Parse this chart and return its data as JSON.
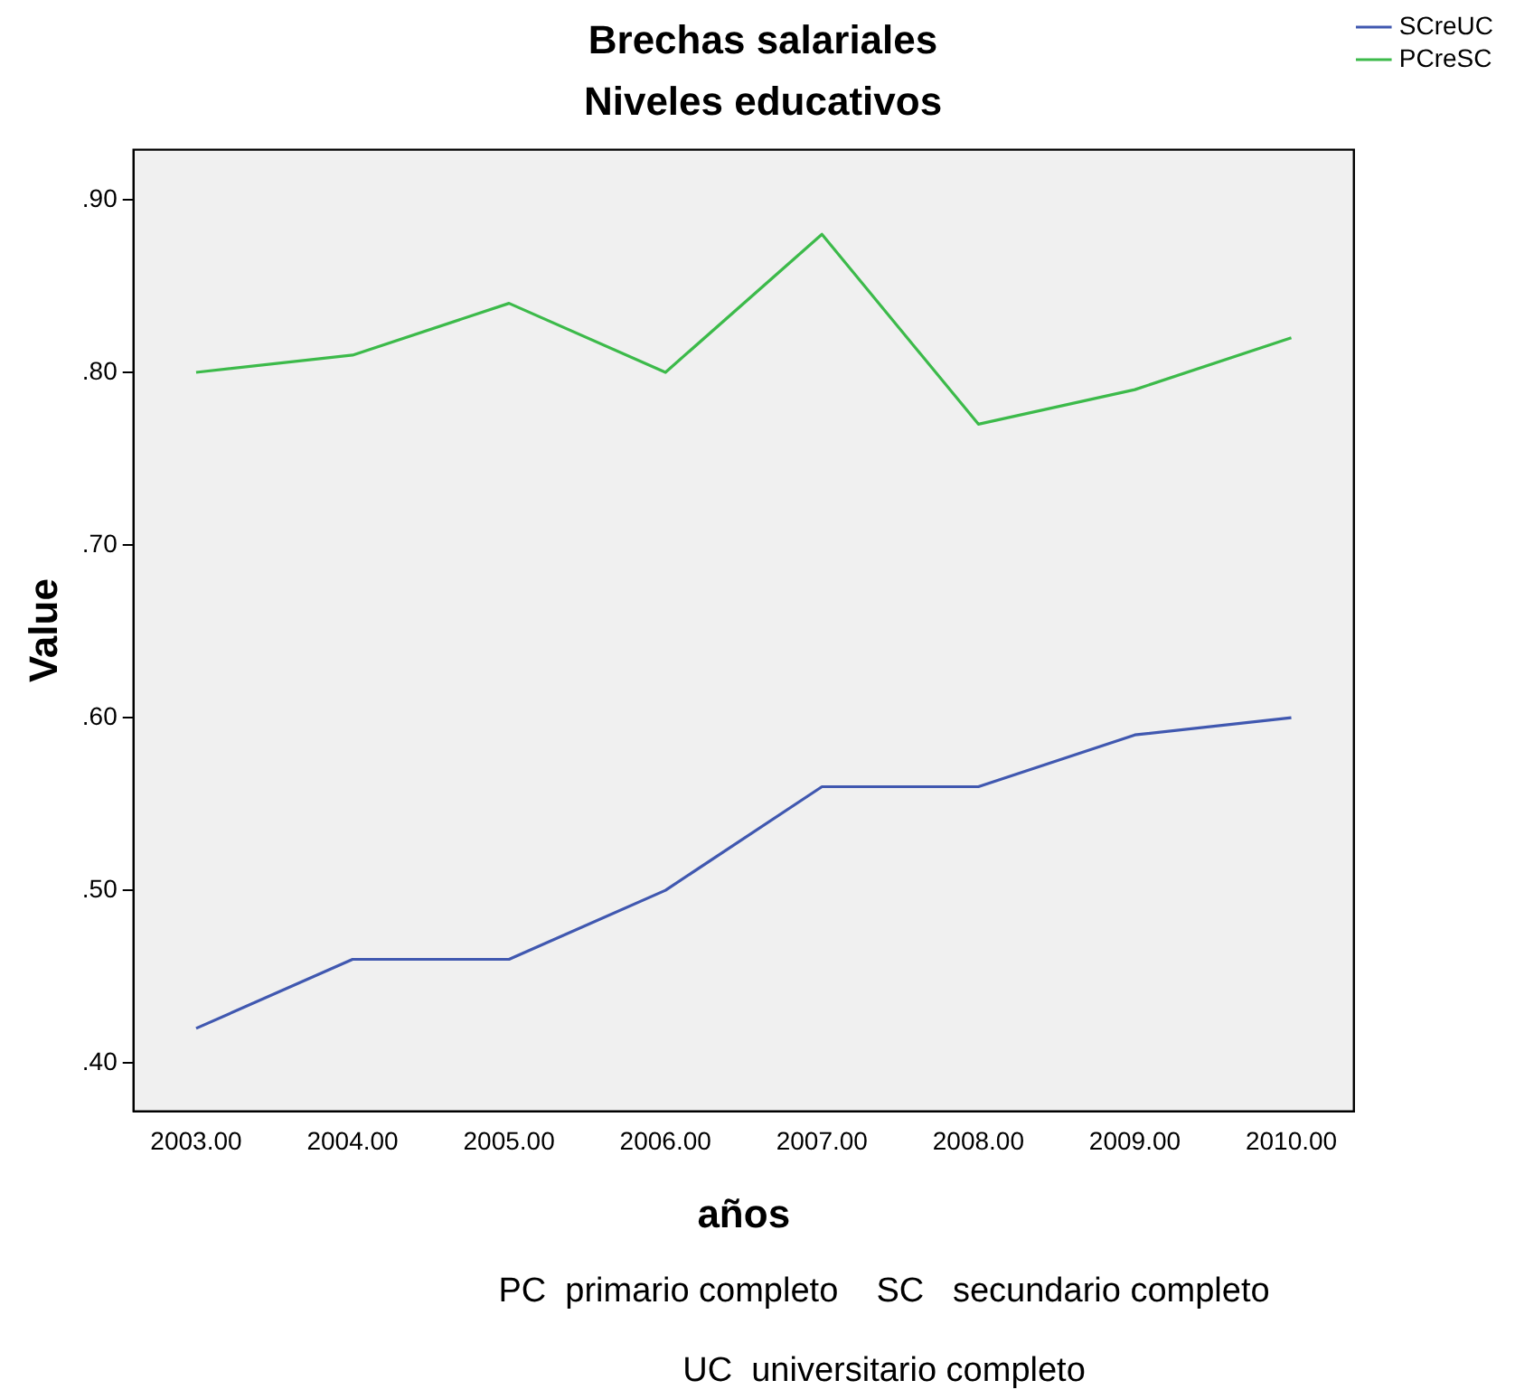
{
  "chart_data": {
    "type": "line",
    "title": "Brechas salariales",
    "subtitle": "Niveles educativos",
    "xlabel": "años",
    "ylabel": "Value",
    "x": [
      2003,
      2004,
      2005,
      2006,
      2007,
      2008,
      2009,
      2010
    ],
    "series": [
      {
        "name": "SCreUC",
        "color": "#4058b0",
        "values": [
          0.42,
          0.46,
          0.46,
          0.5,
          0.56,
          0.56,
          0.59,
          0.6
        ]
      },
      {
        "name": "PCreSC",
        "color": "#3cba4a",
        "values": [
          0.8,
          0.81,
          0.84,
          0.8,
          0.88,
          0.77,
          0.79,
          0.82
        ]
      }
    ],
    "xlim": [
      2002.6,
      2010.4
    ],
    "xticks": [
      {
        "value": 2003,
        "label": "2003.00"
      },
      {
        "value": 2004,
        "label": "2004.00"
      },
      {
        "value": 2005,
        "label": "2005.00"
      },
      {
        "value": 2006,
        "label": "2006.00"
      },
      {
        "value": 2007,
        "label": "2007.00"
      },
      {
        "value": 2008,
        "label": "2008.00"
      },
      {
        "value": 2009,
        "label": "2009.00"
      },
      {
        "value": 2010,
        "label": "2010.00"
      }
    ],
    "ylim": [
      0.372,
      0.929
    ],
    "yticks": [
      {
        "value": 0.4,
        "label": ".40"
      },
      {
        "value": 0.5,
        "label": ".50"
      },
      {
        "value": 0.6,
        "label": ".60"
      },
      {
        "value": 0.7,
        "label": ".70"
      },
      {
        "value": 0.8,
        "label": ".80"
      },
      {
        "value": 0.9,
        "label": ".90"
      }
    ],
    "grid": false,
    "legend": "top right",
    "marker": "none",
    "line_style": "solid",
    "annotations": [
      "PC  primario completo    SC   secundario completo",
      "UC  universitario completo"
    ]
  }
}
